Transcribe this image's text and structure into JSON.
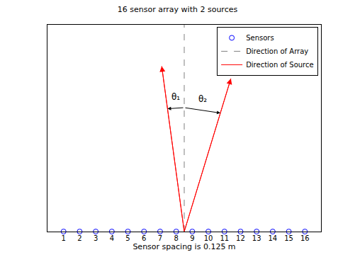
{
  "chart_data": {
    "type": "line",
    "title": "16 sensor array with 2 sources",
    "x_label": "Sensor spacing is 0.125 m",
    "xlim": [
      0,
      17
    ],
    "ylim": [
      0,
      1
    ],
    "tick_labels": false,
    "legend": "upper right",
    "series": [
      {
        "name": "Sensors",
        "type": "scatter",
        "marker": "circle",
        "color": "#0000ff",
        "x": [
          1,
          2,
          3,
          4,
          5,
          6,
          7,
          8,
          9,
          10,
          11,
          12,
          13,
          14,
          15,
          16
        ],
        "values": [
          0,
          0,
          0,
          0,
          0,
          0,
          0,
          0,
          0,
          0,
          0,
          0,
          0,
          0,
          0,
          0
        ],
        "labels": [
          "1",
          "2",
          "3",
          "4",
          "5",
          "6",
          "7",
          "8",
          "9",
          "10",
          "11",
          "12",
          "13",
          "14",
          "15",
          "16"
        ]
      },
      {
        "name": "Direction of Array",
        "type": "line",
        "line_style": "dashed",
        "color": "#808080",
        "x": [
          8.5,
          8.5
        ],
        "values": [
          0,
          1
        ]
      },
      {
        "name": "Direction of Source",
        "type": "line",
        "line_style": "solid",
        "marker": "arrow",
        "color": "#ff0000",
        "x": [
          8.5,
          7.1,
          null,
          8.5,
          11.4
        ],
        "values": [
          0,
          0.8,
          null,
          0,
          0.74
        ]
      }
    ],
    "annotations": [
      {
        "text": "θ₁"
      },
      {
        "text": "θ₂"
      }
    ]
  }
}
